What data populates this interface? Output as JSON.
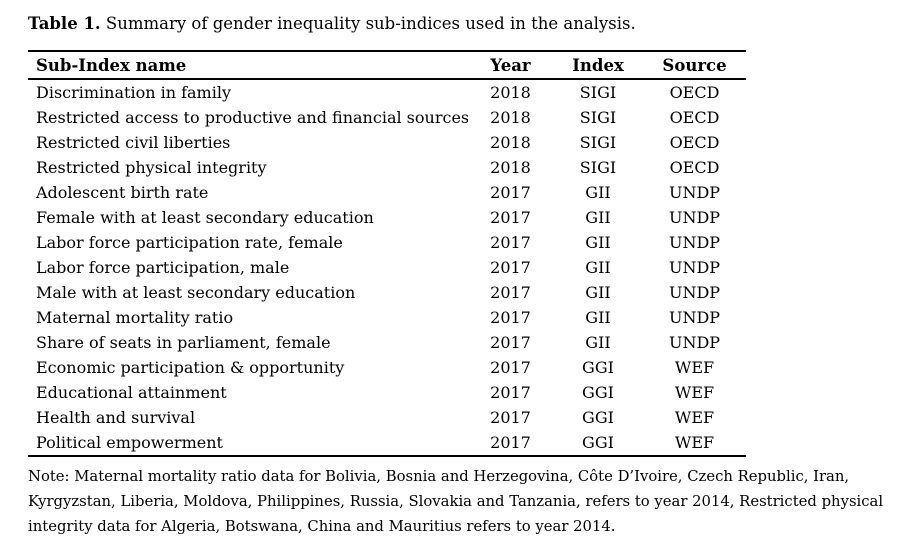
{
  "caption": {
    "label": "Table 1.",
    "text": "Summary of gender inequality sub-indices used in the analysis."
  },
  "table": {
    "columns": [
      "Sub-Index name",
      "Year",
      "Index",
      "Source"
    ],
    "column_keys": [
      "name",
      "year",
      "index",
      "source"
    ],
    "rows": [
      [
        "Discrimination in family",
        "2018",
        "SIGI",
        "OECD"
      ],
      [
        "Restricted access to productive and financial sources",
        "2018",
        "SIGI",
        "OECD"
      ],
      [
        "Restricted civil liberties",
        "2018",
        "SIGI",
        "OECD"
      ],
      [
        "Restricted physical integrity",
        "2018",
        "SIGI",
        "OECD"
      ],
      [
        "Adolescent birth rate",
        "2017",
        "GII",
        "UNDP"
      ],
      [
        "Female with at least secondary education",
        "2017",
        "GII",
        "UNDP"
      ],
      [
        "Labor force participation rate, female",
        "2017",
        "GII",
        "UNDP"
      ],
      [
        "Labor force participation, male",
        "2017",
        "GII",
        "UNDP"
      ],
      [
        "Male with at least secondary education",
        "2017",
        "GII",
        "UNDP"
      ],
      [
        "Maternal mortality ratio",
        "2017",
        "GII",
        "UNDP"
      ],
      [
        "Share of seats in parliament, female",
        "2017",
        "GII",
        "UNDP"
      ],
      [
        "Economic participation & opportunity",
        "2017",
        "GGI",
        "WEF"
      ],
      [
        "Educational attainment",
        "2017",
        "GGI",
        "WEF"
      ],
      [
        "Health and survival",
        "2017",
        "GGI",
        "WEF"
      ],
      [
        "Political empowerment",
        "2017",
        "GGI",
        "WEF"
      ]
    ]
  },
  "note": "Note: Maternal mortality ratio data for Bolivia, Bosnia and Herzegovina, Côte D’Ivoire, Czech Republic, Iran, Kyrgyzstan, Liberia, Moldova, Philippines, Russia, Slovakia and Tanzania, refers to year 2014, Restricted physical integrity data for Algeria, Botswana, China and Mauritius refers to year 2014.",
  "colors": {
    "text": "#000000",
    "background": "#ffffff",
    "rule": "#000000"
  }
}
